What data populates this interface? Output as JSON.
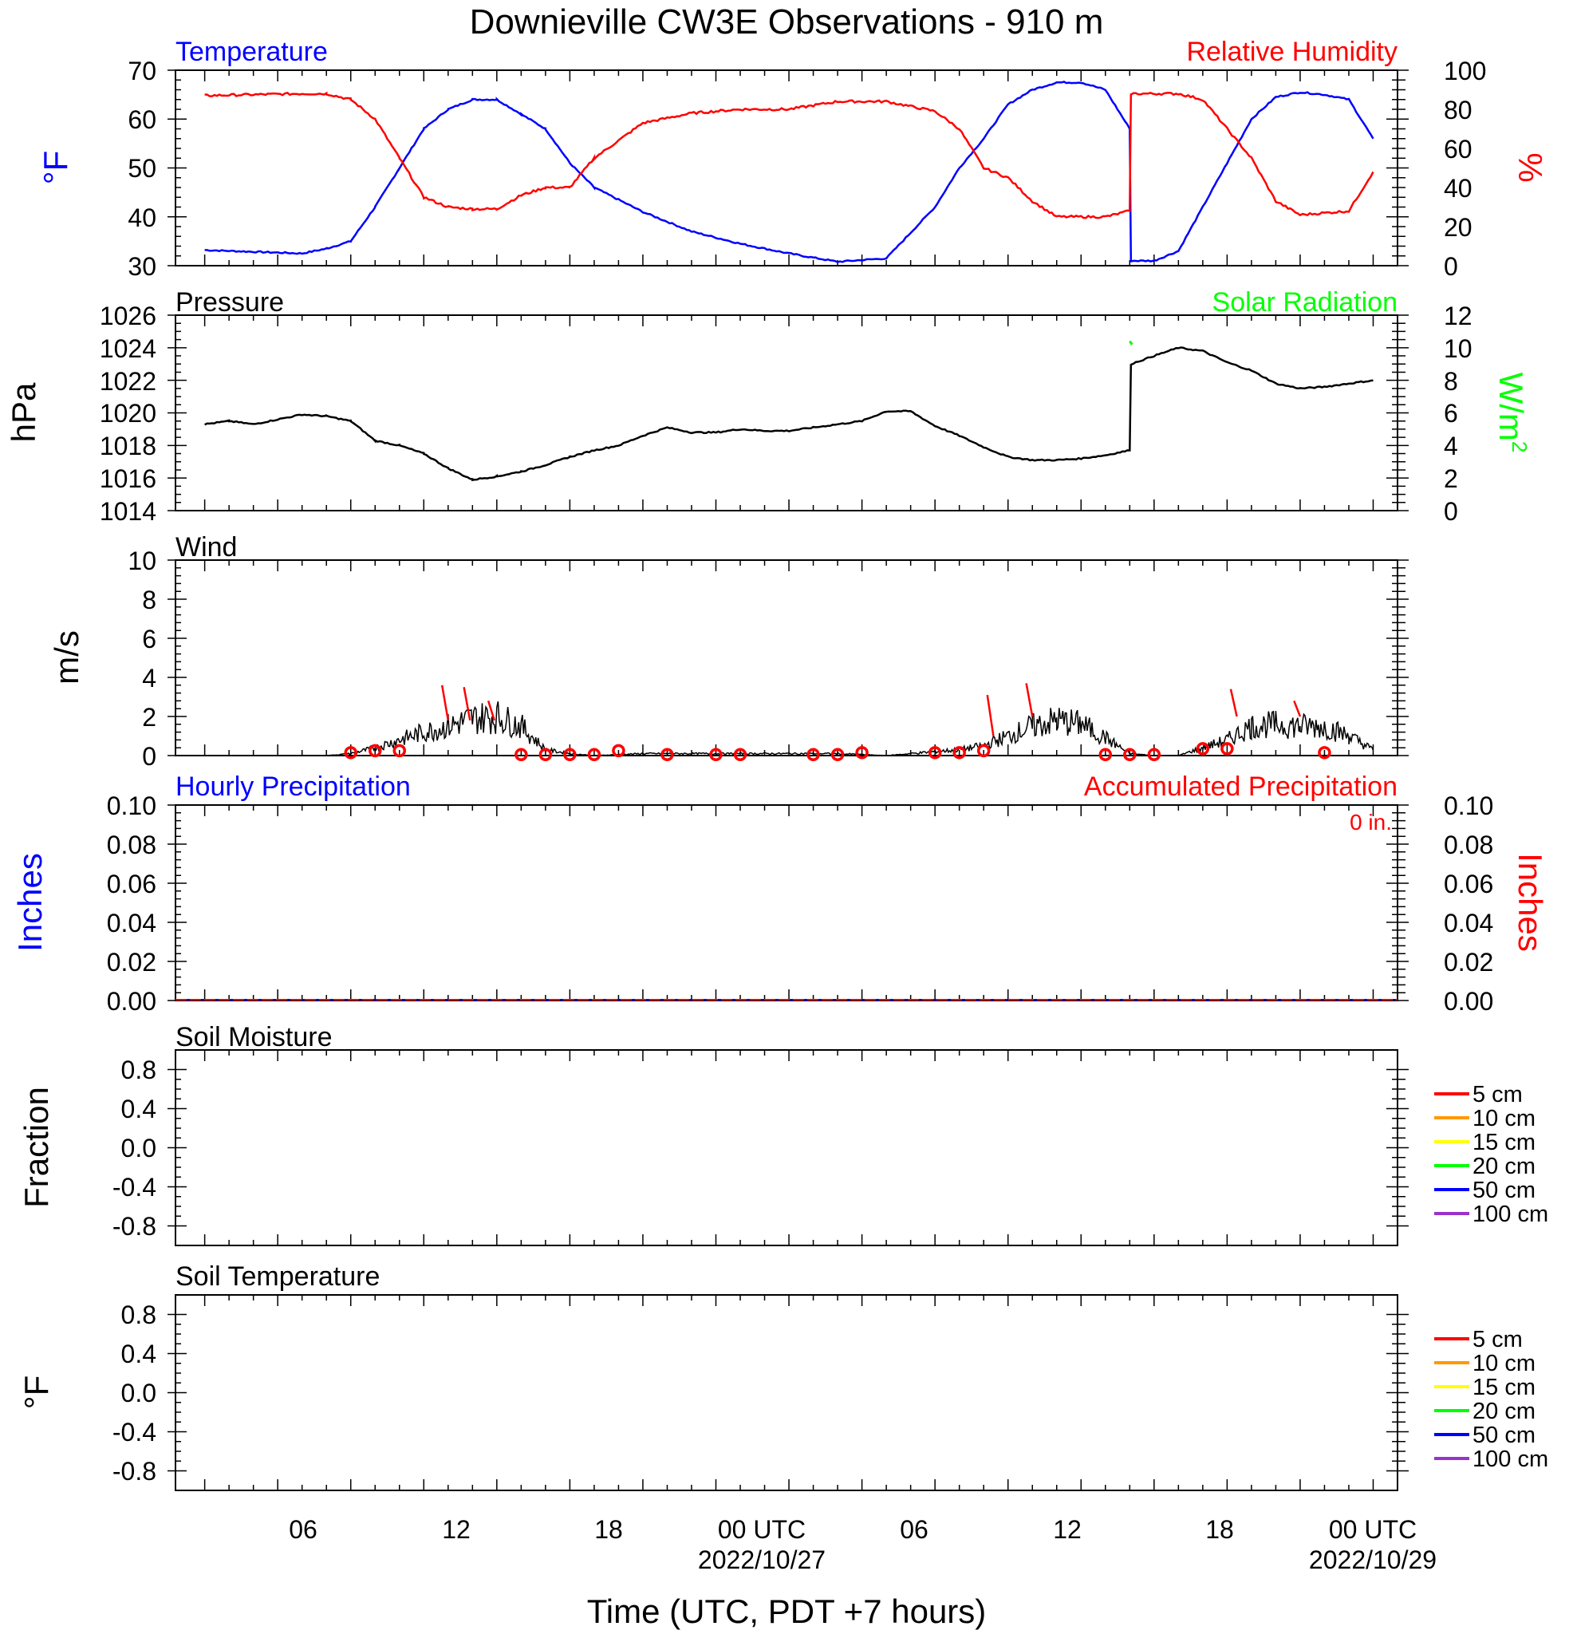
{
  "title": "Downieville CW3E Observations - 910 m",
  "xlabel": "Time (UTC, PDT +7 hours)",
  "x_tick_labels": [
    "06",
    "12",
    "18",
    "00 UTC",
    "06",
    "12",
    "18",
    "00 UTC"
  ],
  "x_date_labels": [
    "2022/10/27",
    "2022/10/29"
  ],
  "chart_data": [
    {
      "type": "line",
      "title_left": "Temperature",
      "title_right": "Relative Humidity",
      "ylabel_left": "°F",
      "ylabel_right": "%",
      "ylim_left": [
        30,
        70
      ],
      "ylim_right": [
        0,
        100
      ],
      "yticks_left": [
        "70",
        "60",
        "50",
        "40",
        "30"
      ],
      "yticks_right": [
        "100",
        "80",
        "60",
        "40",
        "20",
        "0"
      ],
      "x_hours": [
        0,
        4,
        5,
        6,
        7,
        8,
        9,
        10,
        11,
        12,
        13,
        14,
        15,
        16,
        18,
        20,
        22,
        24,
        26,
        28,
        30,
        31,
        32,
        33,
        34,
        35,
        36,
        37,
        38,
        38.05,
        39,
        40,
        41,
        42,
        43,
        44,
        45,
        46,
        47,
        48
      ],
      "series": [
        {
          "name": "Temperature",
          "color": "#0000ff",
          "values": [
            33.2,
            32.5,
            33.5,
            35,
            42,
            50,
            58,
            62,
            64,
            64,
            61,
            58,
            51,
            46,
            41,
            37,
            34.5,
            32.5,
            30.8,
            31.5,
            42,
            50,
            56,
            63,
            66,
            67.5,
            67.5,
            66,
            58,
            31,
            31,
            33,
            42,
            51,
            60,
            64.5,
            65.5,
            65,
            64,
            56
          ]
        },
        {
          "name": "Relative Humidity",
          "color": "#ff0000",
          "values": [
            87,
            88,
            88,
            85,
            75,
            55,
            35,
            30,
            29,
            29,
            36,
            40,
            40,
            55,
            73,
            78,
            80,
            80,
            84,
            84,
            79,
            70,
            50,
            45,
            33,
            25,
            25,
            25,
            28,
            88,
            88,
            88,
            85,
            70,
            55,
            33,
            26,
            27,
            28,
            48
          ]
        }
      ]
    },
    {
      "type": "line",
      "title_left": "Pressure",
      "title_right": "Solar Radiation",
      "ylabel_left": "hPa",
      "ylabel_right": "W/m",
      "ylabel_right_sup": "2",
      "ylim_left": [
        1014,
        1026
      ],
      "ylim_right": [
        0,
        12
      ],
      "yticks_left": [
        "1026",
        "1024",
        "1022",
        "1020",
        "1018",
        "1016",
        "1014"
      ],
      "yticks_right": [
        "12",
        "10",
        "8",
        "6",
        "4",
        "2",
        "0"
      ],
      "x_hours": [
        0,
        1,
        2,
        3,
        4,
        5,
        6,
        7,
        8,
        9,
        10,
        11,
        12,
        13,
        14,
        15,
        16,
        17,
        18,
        19,
        20,
        21,
        22,
        23,
        24,
        25,
        26,
        27,
        28,
        29,
        30,
        31,
        32,
        33,
        34,
        35,
        36,
        37,
        38,
        38.05,
        39,
        40,
        41,
        42,
        43,
        44,
        45,
        46,
        47,
        48
      ],
      "series": [
        {
          "name": "Pressure",
          "color": "#000000",
          "values": [
            1019.3,
            1019.5,
            1019.3,
            1019.6,
            1019.9,
            1019.8,
            1019.5,
            1018.3,
            1018.0,
            1017.5,
            1016.6,
            1015.9,
            1016.1,
            1016.4,
            1016.8,
            1017.3,
            1017.7,
            1018.0,
            1018.6,
            1019.1,
            1018.8,
            1018.8,
            1019.0,
            1018.9,
            1018.9,
            1019.1,
            1019.3,
            1019.5,
            1020.1,
            1020.1,
            1019.2,
            1018.6,
            1017.9,
            1017.3,
            1017.1,
            1017.1,
            1017.2,
            1017.4,
            1017.7,
            1023.0,
            1023.5,
            1024.0,
            1023.8,
            1023.1,
            1022.6,
            1021.8,
            1021.5,
            1021.6,
            1021.8,
            1022.0
          ]
        },
        {
          "name": "Solar Radiation",
          "color": "#00ff00",
          "x_hours": [
            38.0,
            38.1
          ],
          "values": [
            10.4,
            10.2
          ]
        }
      ]
    },
    {
      "type": "line",
      "title": "Wind",
      "ylabel": "m/s",
      "ylim": [
        0,
        10
      ],
      "yticks": [
        "10",
        "8",
        "6",
        "4",
        "2",
        "0"
      ],
      "series": [
        {
          "name": "Wind",
          "color": "#000000",
          "x_hours": [
            0,
            5,
            6,
            7,
            8,
            9,
            10,
            11,
            12,
            13,
            14,
            15,
            16,
            18,
            22,
            24,
            26,
            28,
            30,
            31,
            32,
            33,
            34,
            35,
            36,
            37,
            38,
            39,
            40,
            41,
            42,
            43,
            44,
            45,
            46,
            47,
            48
          ],
          "values": [
            0,
            0,
            0.1,
            0.4,
            0.8,
            1.2,
            1.5,
            1.9,
            2.0,
            1.5,
            0.3,
            0.1,
            0,
            0.1,
            0.1,
            0.1,
            0.1,
            0,
            0.2,
            0.3,
            0.5,
            1.0,
            1.5,
            1.8,
            1.6,
            0.9,
            0.1,
            0,
            0,
            0.4,
            0.8,
            1.5,
            1.6,
            1.5,
            1.5,
            1.0,
            0.3
          ]
        }
      ],
      "markers_hours": [
        6,
        7,
        8,
        13,
        14,
        15,
        16,
        17,
        19,
        21,
        22,
        25,
        26,
        27,
        30,
        31,
        32,
        37,
        38,
        39,
        41,
        42,
        46
      ],
      "markers_values": [
        0.15,
        0.25,
        0.25,
        0.05,
        0.05,
        0.05,
        0.05,
        0.25,
        0.05,
        0.05,
        0.05,
        0.05,
        0.05,
        0.15,
        0.15,
        0.15,
        0.25,
        0.05,
        0.05,
        0.05,
        0.35,
        0.35,
        0.15
      ],
      "barbs": [
        {
          "x": 10,
          "y1": 1.8,
          "y2": 3.6
        },
        {
          "x": 10.9,
          "y1": 1.8,
          "y2": 3.5
        },
        {
          "x": 11.9,
          "y1": 1.8,
          "y2": 2.8
        },
        {
          "x": 32.4,
          "y1": 1.0,
          "y2": 3.1
        },
        {
          "x": 34.0,
          "y1": 2.0,
          "y2": 3.7
        },
        {
          "x": 42.4,
          "y1": 2.0,
          "y2": 3.4
        },
        {
          "x": 45.0,
          "y1": 2.0,
          "y2": 2.8
        }
      ]
    },
    {
      "type": "line",
      "title_left": "Hourly Precipitation",
      "title_right": "Accumulated Precipitation",
      "annotation": "0 in.",
      "ylabel_left": "Inches",
      "ylabel_right": "Inches",
      "ylim": [
        0,
        0.1
      ],
      "yticks": [
        "0.10",
        "0.08",
        "0.06",
        "0.04",
        "0.02",
        "0.00"
      ],
      "series": [
        {
          "name": "Hourly Precipitation",
          "color": "#0000ff",
          "values": [
            0
          ]
        },
        {
          "name": "Accumulated Precipitation",
          "color": "#ff0000",
          "values": [
            0
          ]
        }
      ]
    },
    {
      "type": "line",
      "title": "Soil Moisture",
      "ylabel": "Fraction",
      "ylim": [
        -1,
        1
      ],
      "yticks": [
        "0.8",
        "0.4",
        "0.0",
        "-0.4",
        "-0.8"
      ],
      "legend_position": "right",
      "legend": [
        {
          "label": "5 cm",
          "color": "#ff0000"
        },
        {
          "label": "10 cm",
          "color": "#ff9900"
        },
        {
          "label": "15 cm",
          "color": "#ffff00"
        },
        {
          "label": "20 cm",
          "color": "#00ff00"
        },
        {
          "label": "50 cm",
          "color": "#0000ff"
        },
        {
          "label": "100 cm",
          "color": "#9933cc"
        }
      ]
    },
    {
      "type": "line",
      "title": "Soil Temperature",
      "ylabel": "°F",
      "ylim": [
        -1,
        1
      ],
      "yticks": [
        "0.8",
        "0.4",
        "0.0",
        "-0.4",
        "-0.8"
      ],
      "legend_position": "right",
      "legend": [
        {
          "label": "5 cm",
          "color": "#ff0000"
        },
        {
          "label": "10 cm",
          "color": "#ff9900"
        },
        {
          "label": "15 cm",
          "color": "#ffff00"
        },
        {
          "label": "20 cm",
          "color": "#00ff00"
        },
        {
          "label": "50 cm",
          "color": "#0000ff"
        },
        {
          "label": "100 cm",
          "color": "#9933cc"
        }
      ]
    }
  ]
}
